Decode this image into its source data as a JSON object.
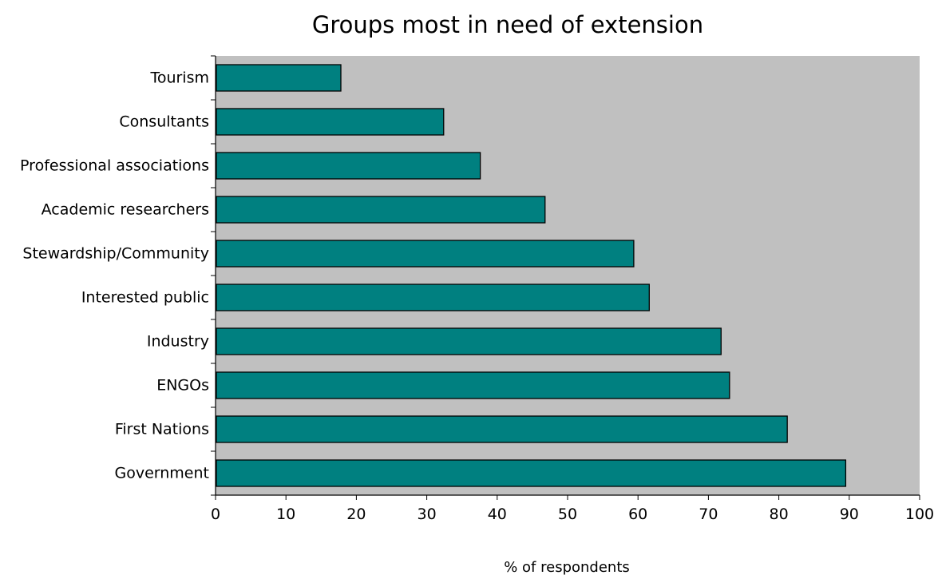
{
  "chart_data": {
    "type": "bar",
    "orientation": "horizontal",
    "title": "Groups most in need of extension",
    "xlabel": "% of respondents",
    "ylabel": "",
    "xlim": [
      0,
      100
    ],
    "x_ticks": [
      0,
      10,
      20,
      30,
      40,
      50,
      60,
      70,
      80,
      90,
      100
    ],
    "grid": false,
    "legend": "none",
    "categories": [
      "Tourism",
      "Consultants",
      "Professional associations",
      "Academic researchers",
      "Stewardship/Community",
      "Interested public",
      "Industry",
      "ENGOs",
      "First Nations",
      "Government"
    ],
    "values": [
      17.8,
      32.4,
      37.6,
      46.8,
      59.4,
      61.6,
      71.8,
      73.0,
      81.2,
      89.5
    ],
    "colors": {
      "bar_fill": "#008080",
      "bar_stroke": "#000000",
      "plot_background": "#c0c0c0",
      "page_background": "#ffffff"
    }
  }
}
